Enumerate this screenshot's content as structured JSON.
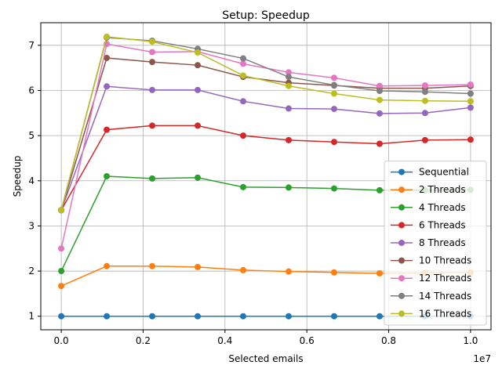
{
  "chart_data": {
    "type": "line",
    "title": "Setup: Speedup",
    "xlabel": "Selected emails",
    "ylabel": "Speedup",
    "x_offset_label": "1e7",
    "x_scale": 10000000,
    "x": [
      0,
      1111111,
      2222222,
      3333333,
      4444444,
      5555555,
      6666666,
      7777777,
      8888888,
      10000000
    ],
    "xlim": [
      -500000,
      10500000
    ],
    "ylim": [
      0.7,
      7.5
    ],
    "xticks": [
      0,
      2000000,
      4000000,
      6000000,
      8000000,
      10000000
    ],
    "xtick_labels": [
      "0.0",
      "0.2",
      "0.4",
      "0.6",
      "0.8",
      "1.0"
    ],
    "yticks": [
      1,
      2,
      3,
      4,
      5,
      6,
      7
    ],
    "ytick_labels": [
      "1",
      "2",
      "3",
      "4",
      "5",
      "6",
      "7"
    ],
    "grid": true,
    "legend_position": "lower-right",
    "series": [
      {
        "name": "Sequential",
        "color": "#1f77b4",
        "values": [
          1.0,
          1.0,
          1.0,
          1.0,
          1.0,
          1.0,
          1.0,
          1.0,
          1.0,
          1.0
        ]
      },
      {
        "name": "2 Threads",
        "color": "#ff7f0e",
        "values": [
          1.67,
          2.11,
          2.11,
          2.09,
          2.02,
          1.99,
          1.97,
          1.95,
          1.96,
          1.97
        ]
      },
      {
        "name": "4 Threads",
        "color": "#2ca02c",
        "values": [
          2.0,
          4.1,
          4.05,
          4.07,
          3.86,
          3.85,
          3.83,
          3.79,
          3.79,
          3.8
        ]
      },
      {
        "name": "6 Threads",
        "color": "#d62728",
        "values": [
          3.35,
          5.13,
          5.22,
          5.22,
          5.0,
          4.9,
          4.86,
          4.82,
          4.9,
          4.91
        ]
      },
      {
        "name": "8 Threads",
        "color": "#9467bd",
        "values": [
          3.35,
          6.09,
          6.01,
          6.01,
          5.76,
          5.6,
          5.59,
          5.49,
          5.5,
          5.62
        ]
      },
      {
        "name": "10 Threads",
        "color": "#8c564b",
        "values": [
          3.35,
          6.72,
          6.63,
          6.56,
          6.3,
          6.17,
          6.11,
          6.05,
          6.05,
          6.1
        ]
      },
      {
        "name": "12 Threads",
        "color": "#e377c2",
        "values": [
          2.5,
          7.03,
          6.85,
          6.86,
          6.59,
          6.4,
          6.28,
          6.1,
          6.11,
          6.13
        ]
      },
      {
        "name": "14 Threads",
        "color": "#7f7f7f",
        "values": [
          3.35,
          7.17,
          7.1,
          6.92,
          6.71,
          6.3,
          6.12,
          5.99,
          5.97,
          5.93
        ]
      },
      {
        "name": "16 Threads",
        "color": "#bcbd22",
        "values": [
          3.35,
          7.19,
          7.08,
          6.84,
          6.33,
          6.1,
          5.93,
          5.79,
          5.77,
          5.76
        ]
      }
    ]
  }
}
